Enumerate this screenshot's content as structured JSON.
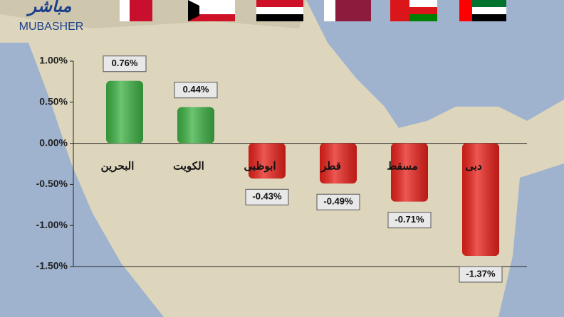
{
  "chart_data": {
    "type": "bar",
    "logo_arabic": "مباشر",
    "logo_text": "MUBASHER",
    "categories": [
      "البحرين",
      "الكويت",
      "ابوظبى",
      "قطر",
      "مسقط",
      "دبى"
    ],
    "values": [
      0.76,
      0.44,
      -0.43,
      -0.49,
      -0.71,
      -1.37
    ],
    "value_labels": [
      "0.76%",
      "0.44%",
      "-0.43%",
      "-0.49%",
      "-0.71%",
      "-1.37%"
    ],
    "positive_color": "#3cb043",
    "negative_color": "#e8201a",
    "ylim": [
      -1.5,
      1.0
    ],
    "yticks": [
      {
        "value": 1.0,
        "label": "1.00%"
      },
      {
        "value": 0.5,
        "label": "0.50%"
      },
      {
        "value": 0,
        "label": "0.00%"
      },
      {
        "value": -0.5,
        "label": "-0.50%"
      },
      {
        "value": -1.0,
        "label": "-1.00%"
      },
      {
        "value": -1.5,
        "label": "-1.50%"
      }
    ]
  }
}
